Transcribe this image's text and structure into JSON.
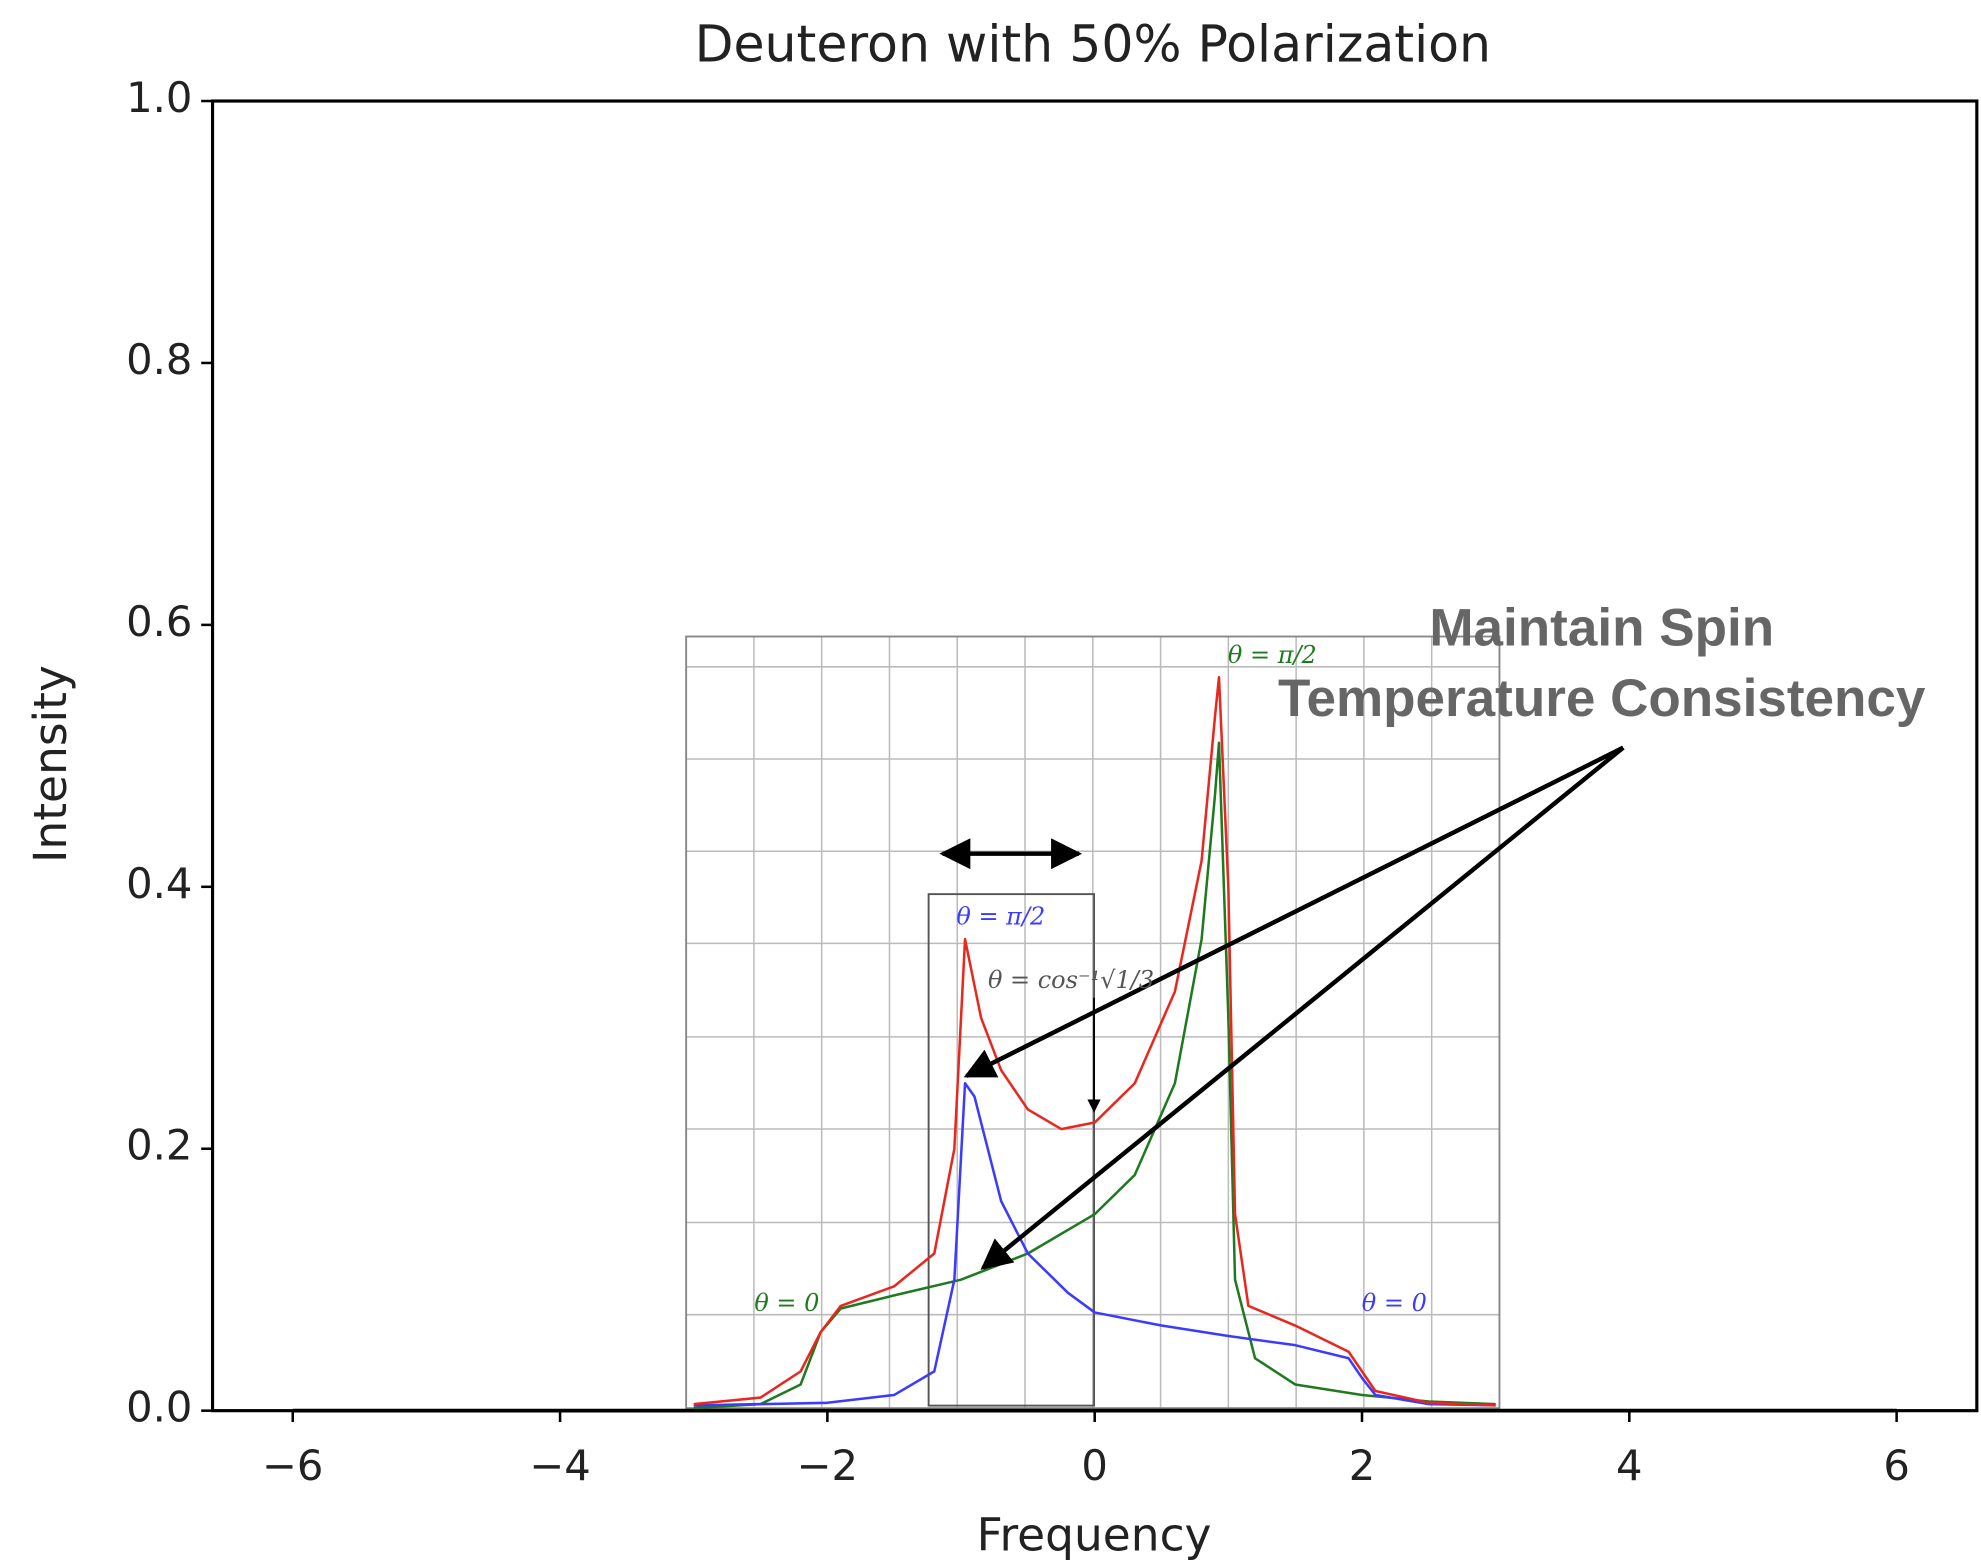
{
  "chart_data": {
    "type": "line",
    "title": "Deuteron with 50% Polarization",
    "xlabel": "Frequency",
    "ylabel": "Intensity",
    "xlim": [
      -6.6,
      6.6
    ],
    "ylim": [
      0,
      1
    ],
    "xticks": [
      {
        "value": -6,
        "label": "−6"
      },
      {
        "value": -4,
        "label": "−4"
      },
      {
        "value": -2,
        "label": "−2"
      },
      0,
      2,
      4,
      6
    ],
    "yticks": [
      {
        "value": 0,
        "label": "0.0"
      },
      0.2,
      0.4,
      0.6,
      0.8,
      {
        "value": 1,
        "label": "1.0"
      }
    ],
    "series": [
      {
        "color": "#000000",
        "x": [
          -6,
          6
        ],
        "values": [
          0,
          0
        ]
      },
      {
        "color": "#1f7a1f",
        "x": [
          -3,
          -2.5,
          -2.2,
          -2.05,
          -1.9,
          -1.5,
          -1,
          -0.5,
          0,
          0.3,
          0.6,
          0.8,
          0.9,
          0.93,
          1.0,
          1.05,
          1.2,
          1.5,
          2,
          2.5,
          3
        ],
        "values": [
          0.002,
          0.005,
          0.02,
          0.06,
          0.078,
          0.088,
          0.1,
          0.12,
          0.15,
          0.18,
          0.25,
          0.36,
          0.47,
          0.51,
          0.3,
          0.1,
          0.04,
          0.02,
          0.012,
          0.007,
          0.005
        ]
      },
      {
        "color": "#3b3bff",
        "x": [
          -3,
          -2,
          -1.5,
          -1.2,
          -1.05,
          -0.97,
          -0.9,
          -0.7,
          -0.5,
          -0.2,
          0,
          0.5,
          1,
          1.5,
          1.9,
          2.0,
          2.1,
          2.5,
          3
        ],
        "values": [
          0.004,
          0.006,
          0.012,
          0.03,
          0.1,
          0.25,
          0.24,
          0.16,
          0.12,
          0.09,
          0.075,
          0.065,
          0.057,
          0.05,
          0.04,
          0.025,
          0.012,
          0.005,
          0.004
        ]
      },
      {
        "color": "#e8271e",
        "x": [
          -3,
          -2.5,
          -2.2,
          -2.05,
          -1.9,
          -1.5,
          -1.2,
          -1.05,
          -0.97,
          -0.85,
          -0.7,
          -0.5,
          -0.25,
          0,
          0.3,
          0.6,
          0.8,
          0.9,
          0.93,
          1.0,
          1.05,
          1.15,
          1.5,
          1.9,
          2.0,
          2.1,
          2.5,
          3
        ],
        "values": [
          0.005,
          0.01,
          0.03,
          0.06,
          0.08,
          0.095,
          0.12,
          0.2,
          0.36,
          0.3,
          0.26,
          0.23,
          0.215,
          0.22,
          0.25,
          0.32,
          0.42,
          0.53,
          0.56,
          0.4,
          0.15,
          0.08,
          0.065,
          0.045,
          0.03,
          0.015,
          0.006,
          0.004
        ]
      }
    ],
    "annotations": [
      {
        "text": "θ = π/2",
        "color": "#1f7a1f"
      },
      {
        "text": "θ = π/2",
        "color": "#3b3bff"
      },
      {
        "text": "θ = cos⁻¹√1/3",
        "color": "#555555"
      },
      {
        "text": "θ = 0",
        "color": "#1f7a1f"
      },
      {
        "text": "θ = 0",
        "color": "#3b3bff"
      }
    ],
    "callout": [
      "Maintain Spin",
      "Temperature Consistency"
    ]
  }
}
